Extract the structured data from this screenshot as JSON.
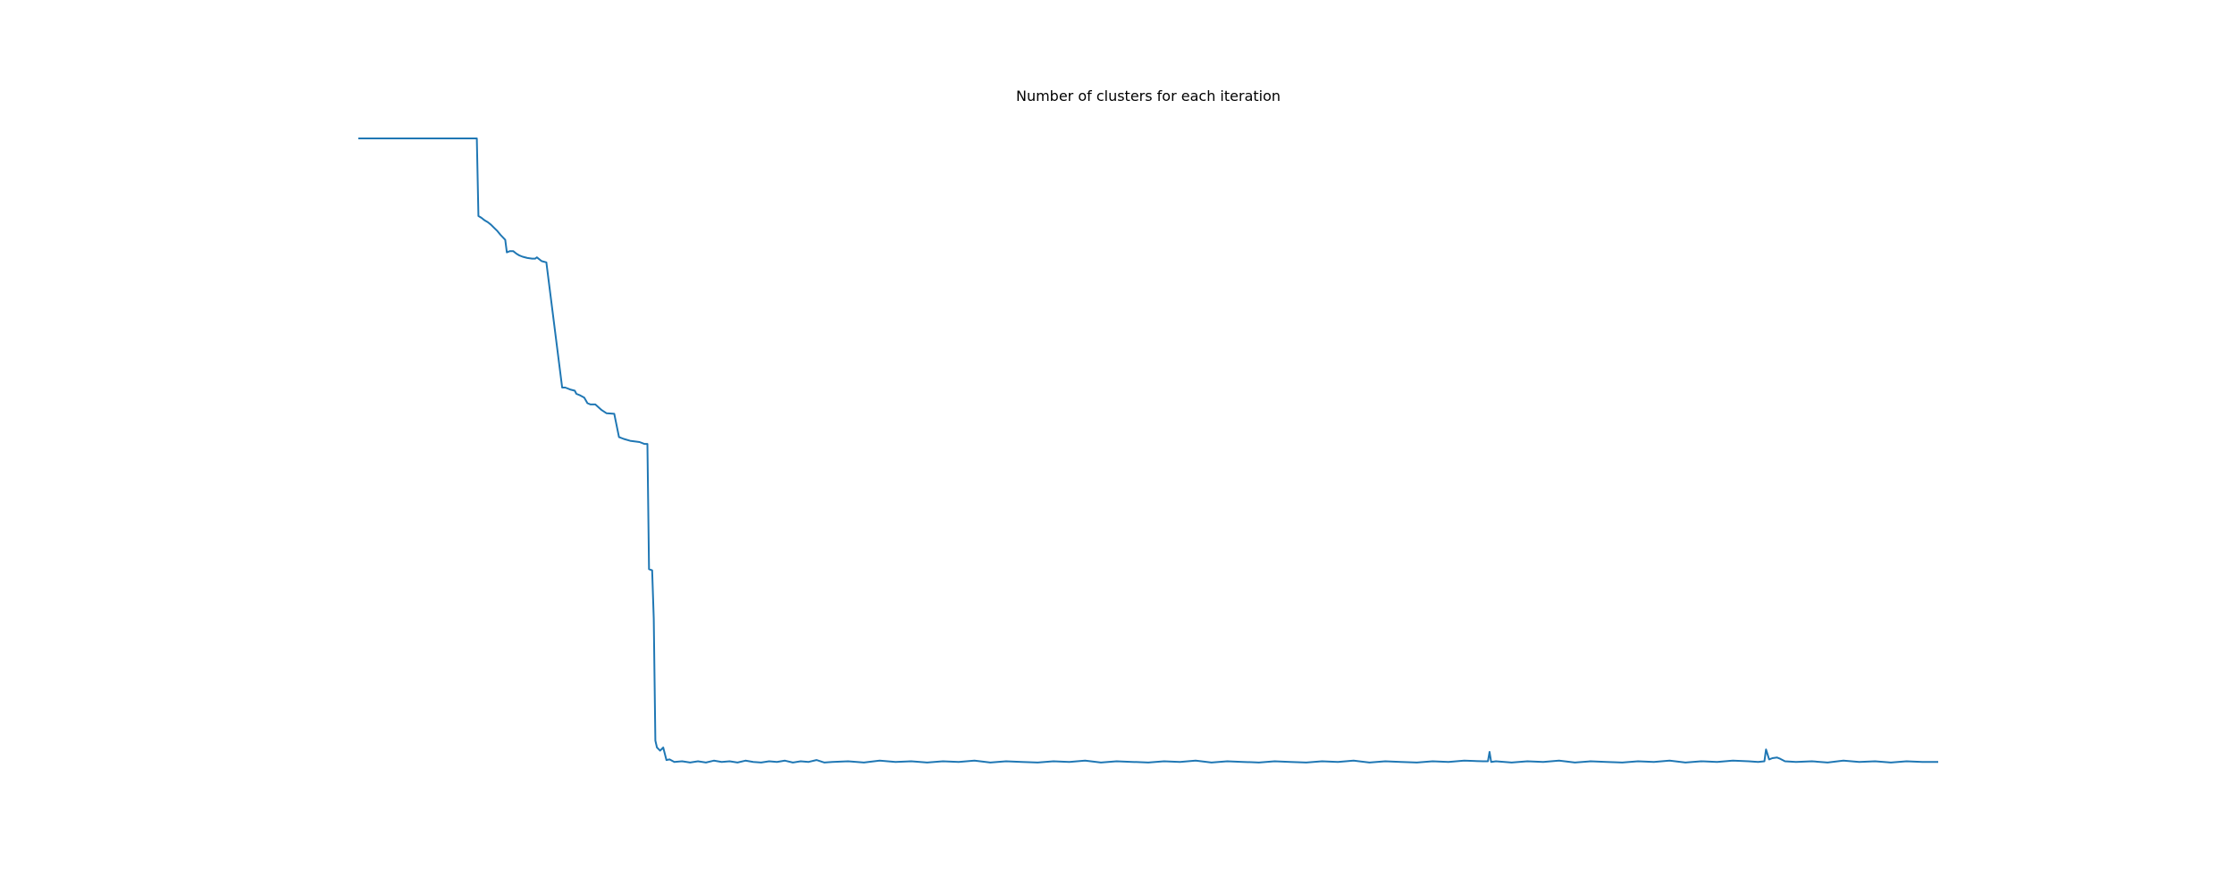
{
  "chart_data": {
    "type": "line",
    "title": "Number of clusters for each iteration",
    "xlabel": "",
    "ylabel": "",
    "axes_visible": false,
    "grid": false,
    "xlim": [
      0,
      1000
    ],
    "ylim": [
      0,
      1000
    ],
    "series": [
      {
        "color": "#1f77b4",
        "points": [
          [
            0,
            1000
          ],
          [
            75,
            1000
          ],
          [
            76,
            876
          ],
          [
            78,
            873
          ],
          [
            80,
            869
          ],
          [
            82,
            866
          ],
          [
            84,
            862
          ],
          [
            86,
            857
          ],
          [
            88,
            852
          ],
          [
            90,
            846
          ],
          [
            93,
            838
          ],
          [
            94,
            818
          ],
          [
            96,
            820
          ],
          [
            98,
            820
          ],
          [
            100,
            816
          ],
          [
            102,
            813
          ],
          [
            104,
            811
          ],
          [
            107,
            809
          ],
          [
            110,
            808
          ],
          [
            112,
            808
          ],
          [
            113,
            810
          ],
          [
            116,
            804
          ],
          [
            119,
            802
          ],
          [
            129,
            602
          ],
          [
            131,
            602
          ],
          [
            134,
            599
          ],
          [
            137,
            597
          ],
          [
            138,
            592
          ],
          [
            140,
            590
          ],
          [
            143,
            586
          ],
          [
            145,
            577
          ],
          [
            147,
            575
          ],
          [
            150,
            575
          ],
          [
            154,
            566
          ],
          [
            157,
            561
          ],
          [
            162,
            560
          ],
          [
            165,
            523
          ],
          [
            168,
            520
          ],
          [
            172,
            517
          ],
          [
            178,
            515
          ],
          [
            181,
            512
          ],
          [
            183,
            512
          ],
          [
            184,
            312
          ],
          [
            186,
            310
          ],
          [
            187,
            233
          ],
          [
            188,
            38
          ],
          [
            189,
            27
          ],
          [
            191,
            22
          ],
          [
            193,
            27
          ],
          [
            195,
            7
          ],
          [
            197,
            8
          ],
          [
            200,
            4
          ],
          [
            205,
            5
          ],
          [
            210,
            3
          ],
          [
            215,
            5
          ],
          [
            220,
            3
          ],
          [
            225,
            6
          ],
          [
            230,
            4
          ],
          [
            235,
            5
          ],
          [
            240,
            3
          ],
          [
            245,
            6
          ],
          [
            250,
            4
          ],
          [
            255,
            3
          ],
          [
            260,
            5
          ],
          [
            265,
            4
          ],
          [
            270,
            6
          ],
          [
            275,
            3
          ],
          [
            280,
            5
          ],
          [
            285,
            4
          ],
          [
            290,
            7
          ],
          [
            295,
            3
          ],
          [
            300,
            4
          ],
          [
            310,
            5
          ],
          [
            320,
            3
          ],
          [
            330,
            6
          ],
          [
            340,
            4
          ],
          [
            350,
            5
          ],
          [
            360,
            3
          ],
          [
            370,
            5
          ],
          [
            380,
            4
          ],
          [
            390,
            6
          ],
          [
            400,
            3
          ],
          [
            410,
            5
          ],
          [
            420,
            4
          ],
          [
            430,
            3
          ],
          [
            440,
            5
          ],
          [
            450,
            4
          ],
          [
            460,
            6
          ],
          [
            470,
            3
          ],
          [
            480,
            5
          ],
          [
            490,
            4
          ],
          [
            500,
            3
          ],
          [
            510,
            5
          ],
          [
            520,
            4
          ],
          [
            530,
            6
          ],
          [
            540,
            3
          ],
          [
            550,
            5
          ],
          [
            560,
            4
          ],
          [
            570,
            3
          ],
          [
            580,
            5
          ],
          [
            590,
            4
          ],
          [
            600,
            3
          ],
          [
            610,
            5
          ],
          [
            620,
            4
          ],
          [
            630,
            6
          ],
          [
            640,
            3
          ],
          [
            650,
            5
          ],
          [
            660,
            4
          ],
          [
            670,
            3
          ],
          [
            680,
            5
          ],
          [
            690,
            4
          ],
          [
            700,
            6
          ],
          [
            712,
            5
          ],
          [
            715,
            5
          ],
          [
            716,
            20
          ],
          [
            717,
            4
          ],
          [
            720,
            5
          ],
          [
            730,
            3
          ],
          [
            740,
            5
          ],
          [
            750,
            4
          ],
          [
            760,
            6
          ],
          [
            770,
            3
          ],
          [
            780,
            5
          ],
          [
            790,
            4
          ],
          [
            800,
            3
          ],
          [
            810,
            5
          ],
          [
            820,
            4
          ],
          [
            830,
            6
          ],
          [
            840,
            3
          ],
          [
            850,
            5
          ],
          [
            860,
            4
          ],
          [
            870,
            6
          ],
          [
            880,
            5
          ],
          [
            886,
            4
          ],
          [
            890,
            5
          ],
          [
            891,
            24
          ],
          [
            893,
            8
          ],
          [
            895,
            10
          ],
          [
            898,
            11
          ],
          [
            900,
            9
          ],
          [
            903,
            5
          ],
          [
            910,
            4
          ],
          [
            920,
            5
          ],
          [
            930,
            3
          ],
          [
            940,
            6
          ],
          [
            950,
            4
          ],
          [
            960,
            5
          ],
          [
            970,
            3
          ],
          [
            980,
            5
          ],
          [
            990,
            4
          ],
          [
            1000,
            4
          ]
        ]
      }
    ]
  }
}
